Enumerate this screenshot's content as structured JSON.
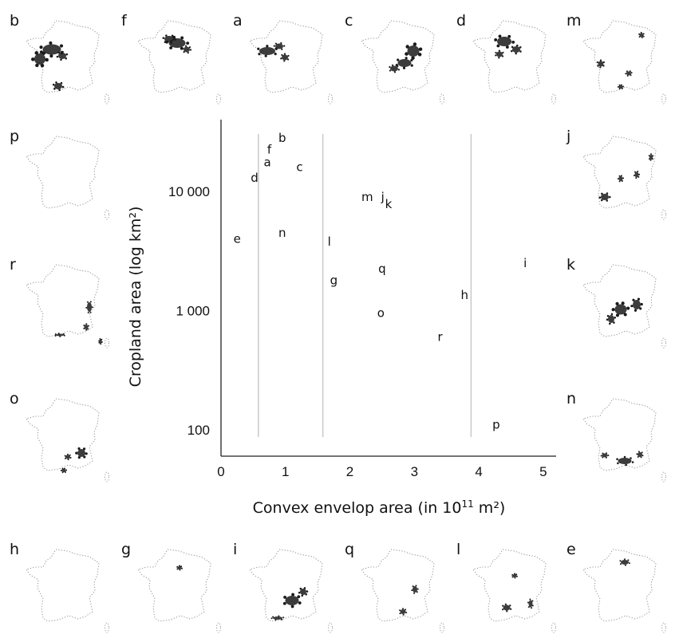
{
  "chart_data": {
    "type": "scatter",
    "title": "",
    "xlabel_main": "Convex envelop area (in 10",
    "xlabel_exp": "11",
    "xlabel_tail": " m²)",
    "ylabel": "Cropland area (log km²)",
    "xlim": [
      0,
      5.2
    ],
    "ylim": [
      60,
      40000
    ],
    "yscale": "log",
    "x_ticks": [
      "0",
      "1",
      "2",
      "3",
      "4",
      "5"
    ],
    "x_tick_values": [
      0,
      1,
      2,
      3,
      4,
      5
    ],
    "y_ticks": [
      "100",
      "1 000",
      "10 000"
    ],
    "y_tick_values": [
      100,
      1000,
      10000
    ],
    "vertical_guides": [
      0.58,
      1.58,
      3.88
    ],
    "points": [
      {
        "label": "b",
        "x": 0.95,
        "y": 28000,
        "color": "#111111"
      },
      {
        "label": "f",
        "x": 0.75,
        "y": 22500,
        "color": "#b5651d"
      },
      {
        "label": "a",
        "x": 0.72,
        "y": 17500,
        "color": "#111111"
      },
      {
        "label": "c",
        "x": 1.22,
        "y": 16000,
        "color": "#111111"
      },
      {
        "label": "d",
        "x": 0.52,
        "y": 13000,
        "color": "#111111"
      },
      {
        "label": "m",
        "x": 2.27,
        "y": 9000,
        "color": "#111111"
      },
      {
        "label": "j",
        "x": 2.51,
        "y": 9000,
        "color": "#111111"
      },
      {
        "label": "k",
        "x": 2.6,
        "y": 7800,
        "color": "#111111"
      },
      {
        "label": "e",
        "x": 0.25,
        "y": 4000,
        "color": "#111111"
      },
      {
        "label": "n",
        "x": 0.95,
        "y": 4500,
        "color": "#111111"
      },
      {
        "label": "l",
        "x": 1.68,
        "y": 3800,
        "color": "#111111"
      },
      {
        "label": "i",
        "x": 4.72,
        "y": 2500,
        "color": "#111111"
      },
      {
        "label": "q",
        "x": 2.5,
        "y": 2250,
        "color": "#111111"
      },
      {
        "label": "g",
        "x": 1.75,
        "y": 1800,
        "color": "#111111"
      },
      {
        "label": "h",
        "x": 3.78,
        "y": 1350,
        "color": "#111111"
      },
      {
        "label": "o",
        "x": 2.48,
        "y": 950,
        "color": "#111111"
      },
      {
        "label": "r",
        "x": 3.4,
        "y": 600,
        "color": "#b5651d"
      },
      {
        "label": "p",
        "x": 4.27,
        "y": 110,
        "color": "#111111"
      }
    ]
  },
  "map_panels": [
    {
      "letter": "b",
      "blobs": [
        [
          0.35,
          0.38,
          0.23,
          0.13
        ],
        [
          0.2,
          0.5,
          0.14,
          0.14
        ],
        [
          0.48,
          0.46,
          0.1,
          0.08
        ],
        [
          0.43,
          0.84,
          0.1,
          0.08
        ]
      ]
    },
    {
      "letter": "f",
      "blobs": [
        [
          0.52,
          0.3,
          0.21,
          0.12
        ],
        [
          0.42,
          0.25,
          0.12,
          0.08
        ],
        [
          0.64,
          0.38,
          0.08,
          0.07
        ]
      ]
    },
    {
      "letter": "a",
      "blobs": [
        [
          0.25,
          0.4,
          0.2,
          0.1
        ],
        [
          0.4,
          0.34,
          0.1,
          0.07
        ],
        [
          0.47,
          0.48,
          0.08,
          0.07
        ]
      ]
    },
    {
      "letter": "c",
      "blobs": [
        [
          0.68,
          0.4,
          0.15,
          0.14
        ],
        [
          0.57,
          0.55,
          0.17,
          0.1
        ],
        [
          0.44,
          0.62,
          0.1,
          0.07
        ]
      ]
    },
    {
      "letter": "d",
      "blobs": [
        [
          0.42,
          0.28,
          0.18,
          0.12
        ],
        [
          0.57,
          0.38,
          0.1,
          0.08
        ],
        [
          0.36,
          0.44,
          0.08,
          0.07
        ]
      ]
    },
    {
      "letter": "m",
      "blobs": [
        [
          0.25,
          0.56,
          0.07,
          0.07
        ],
        [
          0.76,
          0.2,
          0.05,
          0.05
        ],
        [
          0.6,
          0.68,
          0.06,
          0.05
        ],
        [
          0.5,
          0.85,
          0.05,
          0.04
        ]
      ]
    },
    {
      "letter": "p",
      "blobs": []
    },
    {
      "letter": "j",
      "blobs": [
        [
          0.3,
          0.78,
          0.1,
          0.08
        ],
        [
          0.5,
          0.55,
          0.05,
          0.06
        ],
        [
          0.7,
          0.5,
          0.05,
          0.07
        ],
        [
          0.88,
          0.28,
          0.04,
          0.06
        ]
      ]
    },
    {
      "letter": "r",
      "blobs": [
        [
          0.82,
          0.55,
          0.06,
          0.12
        ],
        [
          0.78,
          0.8,
          0.05,
          0.06
        ],
        [
          0.45,
          0.9,
          0.1,
          0.03
        ],
        [
          0.96,
          0.98,
          0.03,
          0.05
        ]
      ]
    },
    {
      "letter": "k",
      "blobs": [
        [
          0.5,
          0.58,
          0.15,
          0.13
        ],
        [
          0.7,
          0.52,
          0.1,
          0.12
        ],
        [
          0.38,
          0.7,
          0.08,
          0.1
        ]
      ]
    },
    {
      "letter": "o",
      "blobs": [
        [
          0.72,
          0.7,
          0.1,
          0.1
        ],
        [
          0.55,
          0.75,
          0.06,
          0.05
        ],
        [
          0.5,
          0.92,
          0.05,
          0.04
        ]
      ]
    },
    {
      "letter": "n",
      "blobs": [
        [
          0.55,
          0.8,
          0.17,
          0.08
        ],
        [
          0.3,
          0.73,
          0.07,
          0.05
        ],
        [
          0.74,
          0.72,
          0.06,
          0.06
        ]
      ]
    },
    {
      "letter": "h",
      "blobs": []
    },
    {
      "letter": "g",
      "blobs": [
        [
          0.55,
          0.25,
          0.05,
          0.04
        ]
      ]
    },
    {
      "letter": "i",
      "blobs": [
        [
          0.56,
          0.66,
          0.17,
          0.12
        ],
        [
          0.7,
          0.55,
          0.08,
          0.08
        ],
        [
          0.38,
          0.88,
          0.12,
          0.04
        ]
      ]
    },
    {
      "letter": "q",
      "blobs": [
        [
          0.7,
          0.52,
          0.06,
          0.08
        ],
        [
          0.55,
          0.8,
          0.07,
          0.06
        ]
      ]
    },
    {
      "letter": "l",
      "blobs": [
        [
          0.45,
          0.75,
          0.09,
          0.07
        ],
        [
          0.75,
          0.7,
          0.05,
          0.09
        ],
        [
          0.55,
          0.35,
          0.05,
          0.04
        ]
      ]
    },
    {
      "letter": "e",
      "blobs": [
        [
          0.55,
          0.18,
          0.1,
          0.06
        ]
      ]
    }
  ]
}
